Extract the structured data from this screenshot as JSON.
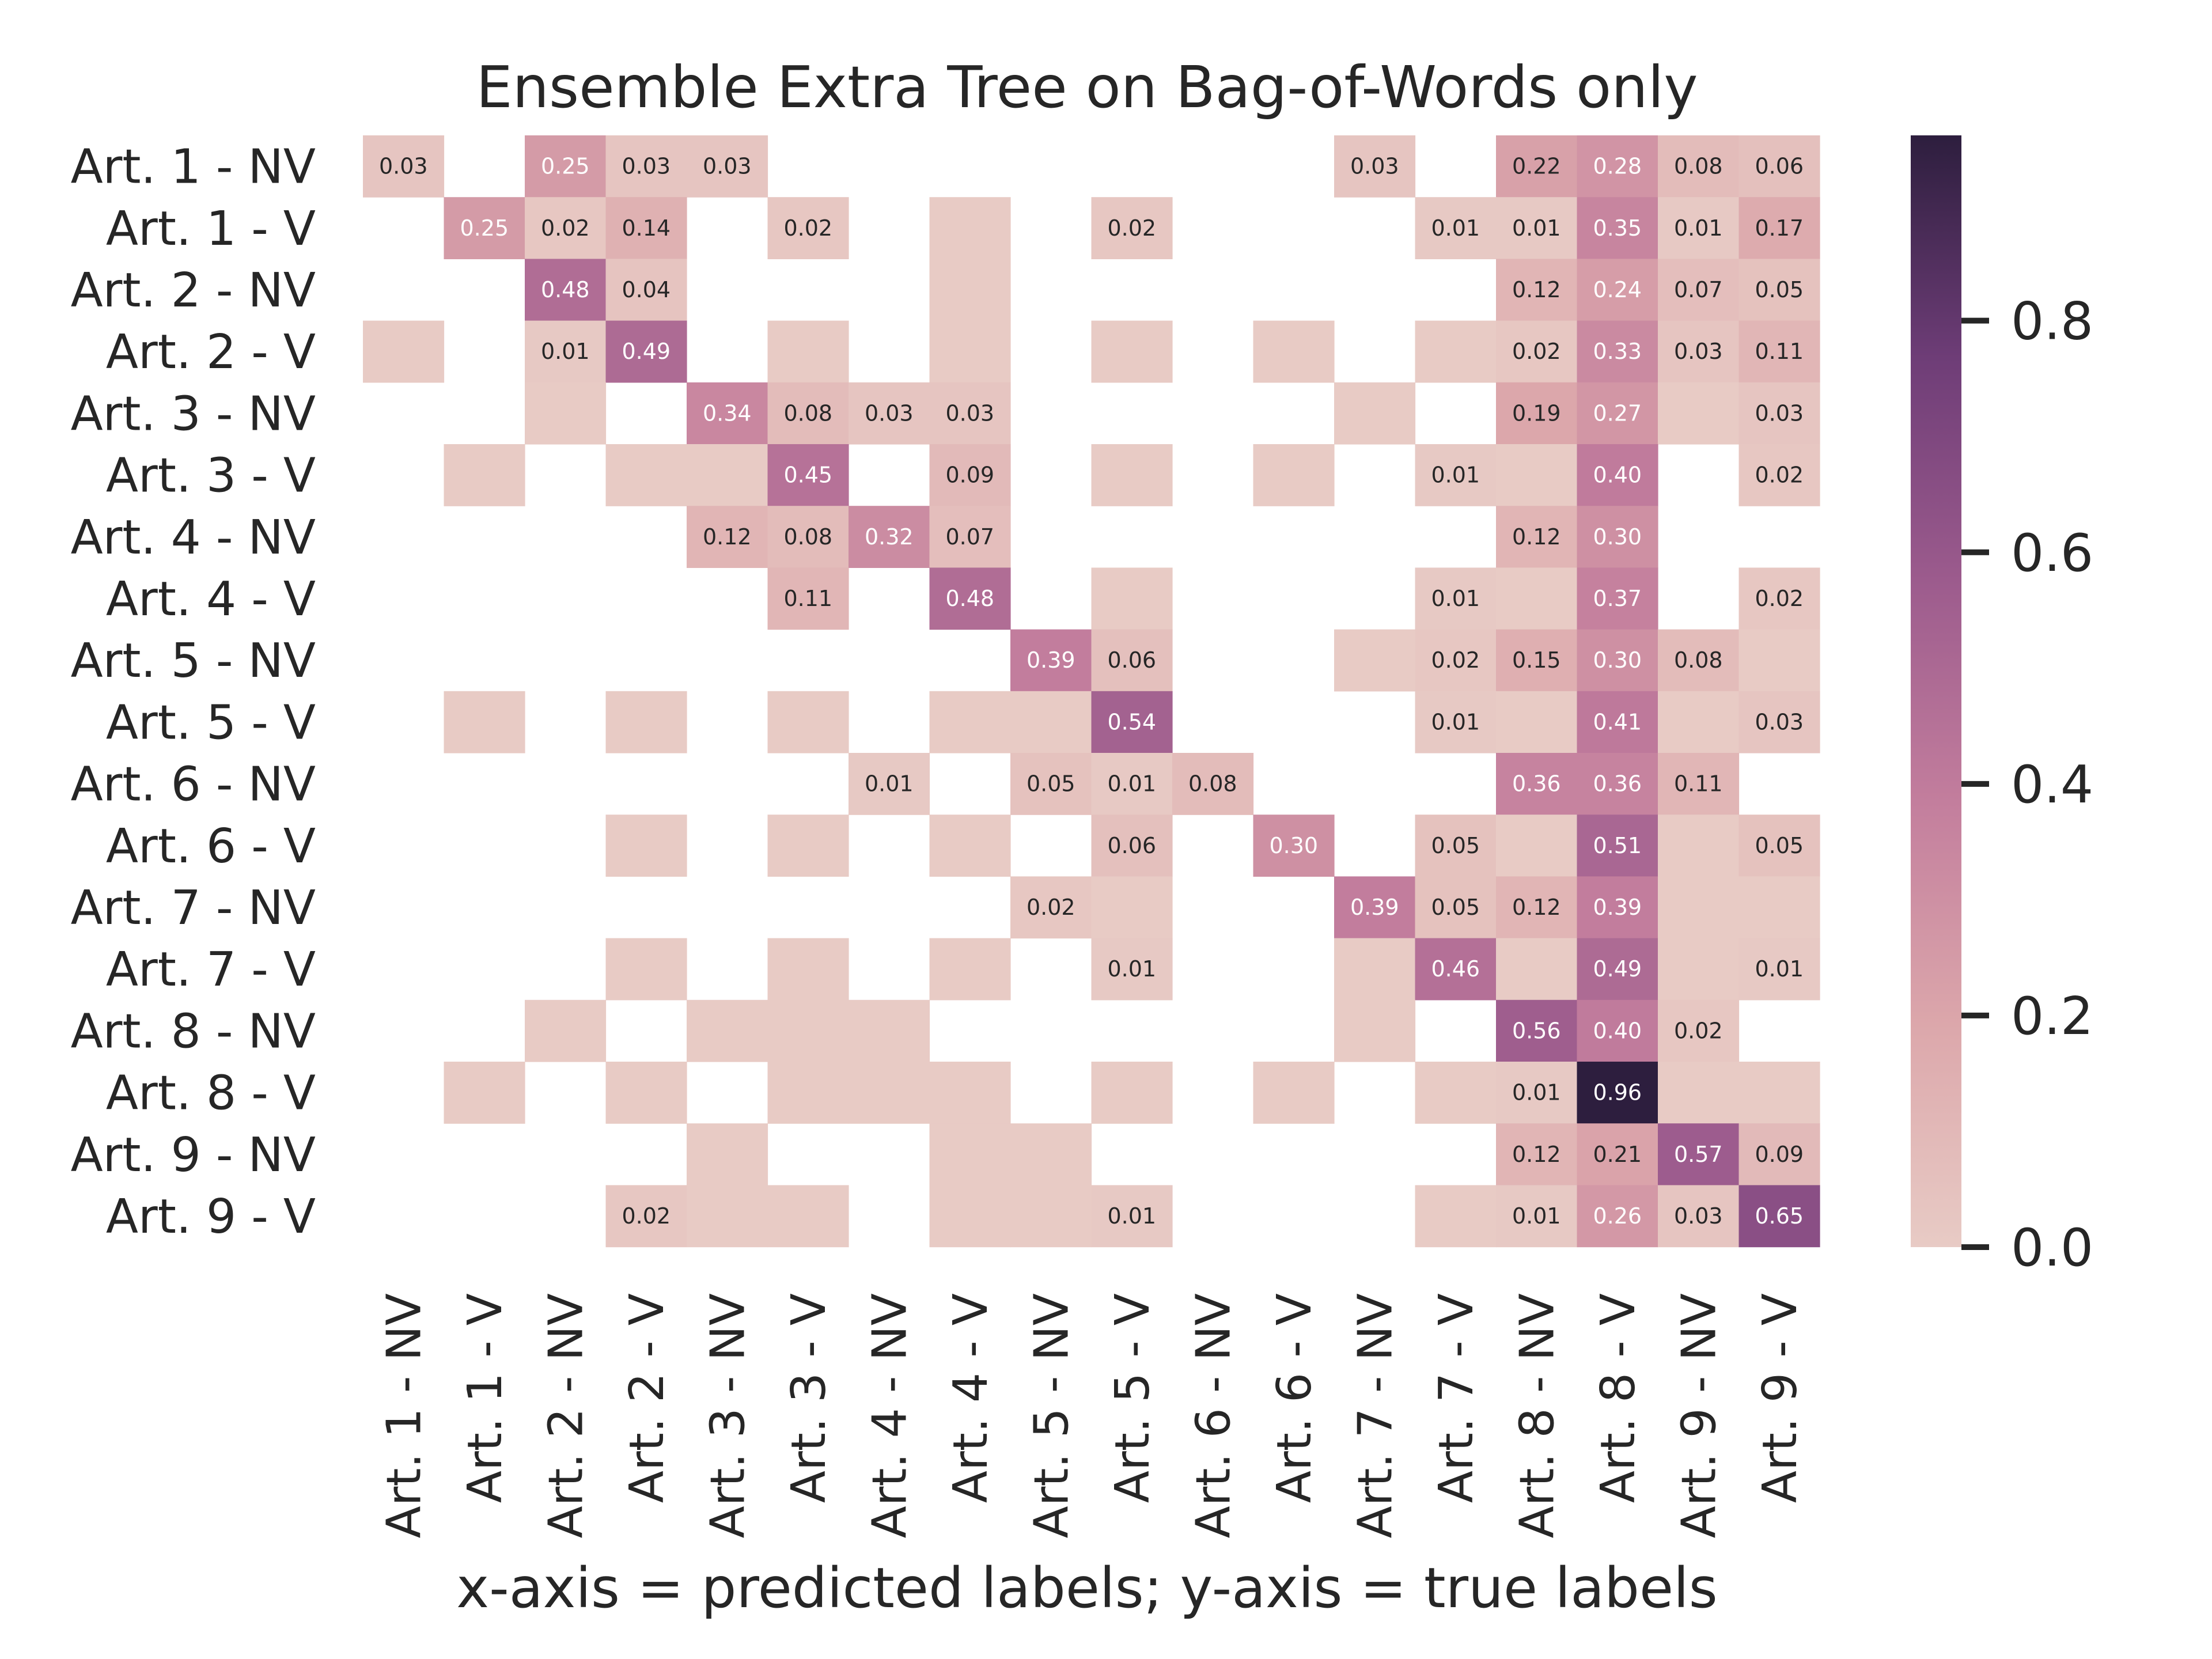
{
  "chart_data": {
    "type": "heatmap",
    "title": "Ensemble Extra Tree on Bag-of-Words only",
    "xlabel": "x-axis = predicted labels; y-axis = true labels",
    "ylabel": "",
    "x_categories": [
      "Art. 1 - NV",
      "Art. 1 - V",
      "Art. 2 - NV",
      "Art. 2 - V",
      "Art. 3 - NV",
      "Art. 3 - V",
      "Art. 4 - NV",
      "Art. 4 - V",
      "Art. 5 - NV",
      "Art. 5 - V",
      "Art. 6 - NV",
      "Art. 6 - V",
      "Art. 7 - NV",
      "Art. 7 - V",
      "Art. 8 - NV",
      "Art. 8 - V",
      "Art. 9 - NV",
      "Art. 9 - V"
    ],
    "y_categories": [
      "Art. 1 - NV",
      "Art. 1 - V",
      "Art. 2 - NV",
      "Art. 2 - V",
      "Art. 3 - NV",
      "Art. 3 - V",
      "Art. 4 - NV",
      "Art. 4 - V",
      "Art. 5 - NV",
      "Art. 5 - V",
      "Art. 6 - NV",
      "Art. 6 - V",
      "Art. 7 - NV",
      "Art. 7 - V",
      "Art. 8 - NV",
      "Art. 8 - V",
      "Art. 9 - NV",
      "Art. 9 - V"
    ],
    "values": [
      [
        0.03,
        null,
        0.25,
        0.03,
        0.03,
        null,
        null,
        null,
        null,
        null,
        null,
        null,
        0.03,
        null,
        0.22,
        0.28,
        0.08,
        0.06
      ],
      [
        null,
        0.25,
        0.02,
        0.14,
        null,
        0.02,
        null,
        0,
        null,
        0.02,
        null,
        null,
        null,
        0.01,
        0.01,
        0.35,
        0.01,
        0.17
      ],
      [
        null,
        null,
        0.48,
        0.04,
        null,
        null,
        null,
        0,
        null,
        null,
        null,
        null,
        null,
        null,
        0.12,
        0.24,
        0.07,
        0.05
      ],
      [
        0,
        null,
        0.01,
        0.49,
        null,
        0,
        null,
        0,
        null,
        0,
        null,
        0,
        null,
        0,
        0.02,
        0.33,
        0.03,
        0.11
      ],
      [
        null,
        null,
        0,
        null,
        0.34,
        0.08,
        0.03,
        0.03,
        null,
        null,
        null,
        null,
        0,
        null,
        0.19,
        0.27,
        0,
        0.03
      ],
      [
        null,
        0,
        null,
        0,
        0,
        0.45,
        null,
        0.09,
        null,
        0,
        null,
        0,
        null,
        0.01,
        0,
        0.4,
        null,
        0.02
      ],
      [
        null,
        null,
        null,
        null,
        0.12,
        0.08,
        0.32,
        0.07,
        null,
        null,
        null,
        null,
        null,
        null,
        0.12,
        0.3,
        null,
        null
      ],
      [
        null,
        null,
        null,
        null,
        null,
        0.11,
        null,
        0.48,
        null,
        0,
        null,
        null,
        null,
        0.01,
        0,
        0.37,
        null,
        0.02
      ],
      [
        null,
        null,
        null,
        null,
        null,
        null,
        null,
        null,
        0.39,
        0.06,
        null,
        null,
        0,
        0.02,
        0.15,
        0.3,
        0.08,
        0
      ],
      [
        null,
        0,
        null,
        0,
        null,
        0,
        null,
        0,
        0,
        0.54,
        null,
        null,
        null,
        0.01,
        0,
        0.41,
        0,
        0.03
      ],
      [
        null,
        null,
        null,
        null,
        null,
        null,
        0.01,
        null,
        0.05,
        0.01,
        0.08,
        null,
        null,
        null,
        0.36,
        0.36,
        0.11,
        null
      ],
      [
        null,
        null,
        null,
        0,
        null,
        0,
        null,
        0,
        null,
        0.06,
        null,
        0.3,
        null,
        0.05,
        0,
        0.51,
        0,
        0.05
      ],
      [
        null,
        null,
        null,
        null,
        null,
        null,
        null,
        null,
        0.02,
        0,
        null,
        null,
        0.39,
        0.05,
        0.12,
        0.39,
        0,
        0
      ],
      [
        null,
        null,
        null,
        0,
        null,
        0,
        null,
        0,
        null,
        0.01,
        null,
        null,
        0,
        0.46,
        0,
        0.49,
        0,
        0.01
      ],
      [
        null,
        null,
        0,
        null,
        0,
        0,
        0,
        null,
        null,
        null,
        null,
        null,
        0,
        null,
        0.56,
        0.4,
        0.02,
        null
      ],
      [
        null,
        0,
        null,
        0,
        null,
        0,
        0,
        0,
        null,
        0,
        null,
        0,
        null,
        0,
        0.01,
        0.96,
        0,
        0
      ],
      [
        null,
        null,
        null,
        null,
        0,
        null,
        null,
        0,
        0,
        null,
        null,
        null,
        null,
        null,
        0.12,
        0.21,
        0.57,
        0.09
      ],
      [
        null,
        null,
        null,
        0.02,
        0,
        0,
        null,
        0,
        0,
        0.01,
        null,
        null,
        null,
        0,
        0.01,
        0.26,
        0.03,
        0.65
      ]
    ],
    "colorbar": {
      "range": [
        0.0,
        0.96
      ],
      "ticks": [
        "0.0",
        "0.2",
        "0.4",
        "0.6",
        "0.8"
      ],
      "colors": [
        "#e8cbc5",
        "#dca7ab",
        "#c37e9d",
        "#9c5b8d",
        "#6e3d77",
        "#2d1e3e"
      ]
    },
    "grid": false,
    "legend": "colorbar-right"
  }
}
